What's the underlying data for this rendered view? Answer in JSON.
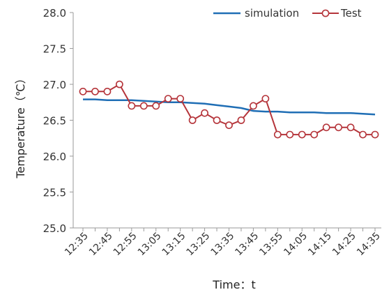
{
  "chart_data": {
    "type": "line",
    "xlabel": "Time：t",
    "ylabel": "Temperature（℃）",
    "ylim": [
      25.0,
      28.0
    ],
    "yticks": [
      "25.0",
      "25.5",
      "26.0",
      "26.5",
      "27.0",
      "27.5",
      "28.0"
    ],
    "x_tick_labels": [
      "12:35",
      "12:45",
      "12:55",
      "13:05",
      "13:15",
      "13:25",
      "13:35",
      "13:45",
      "13:55",
      "14:05",
      "14:15",
      "14:25",
      "14:35"
    ],
    "x": [
      "12:35",
      "12:40",
      "12:45",
      "12:50",
      "12:55",
      "13:00",
      "13:05",
      "13:10",
      "13:15",
      "13:20",
      "13:25",
      "13:30",
      "13:35",
      "13:40",
      "13:45",
      "13:50",
      "13:55",
      "14:00",
      "14:05",
      "14:10",
      "14:15",
      "14:20",
      "14:25",
      "14:30",
      "14:35"
    ],
    "legend_position": "top-right",
    "grid": false,
    "series": [
      {
        "name": "simulation",
        "color": "#1f6eb5",
        "marker": "none",
        "values": [
          26.79,
          26.79,
          26.78,
          26.78,
          26.78,
          26.77,
          26.76,
          26.75,
          26.75,
          26.74,
          26.73,
          26.71,
          26.69,
          26.67,
          26.63,
          26.62,
          26.62,
          26.61,
          26.61,
          26.61,
          26.6,
          26.6,
          26.6,
          26.59,
          26.58
        ]
      },
      {
        "name": "Test",
        "color": "#b5343a",
        "marker": "circle",
        "values": [
          26.9,
          26.9,
          26.9,
          27.0,
          26.7,
          26.7,
          26.7,
          26.8,
          26.8,
          26.5,
          26.6,
          26.5,
          26.43,
          26.5,
          26.7,
          26.8,
          26.3,
          26.3,
          26.3,
          26.3,
          26.4,
          26.4,
          26.4,
          26.3,
          26.3
        ]
      }
    ]
  }
}
